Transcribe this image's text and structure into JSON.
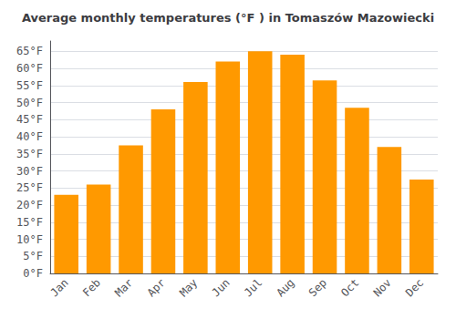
{
  "chart_data": {
    "type": "bar",
    "title": "Average monthly temperatures (°F ) in Tomaszów Mazowiecki",
    "categories": [
      "Jan",
      "Feb",
      "Mar",
      "Apr",
      "May",
      "Jun",
      "Jul",
      "Aug",
      "Sep",
      "Oct",
      "Nov",
      "Dec"
    ],
    "values": [
      23,
      26,
      37.5,
      48,
      56,
      62,
      65,
      64,
      56.5,
      48.5,
      37,
      27.5
    ],
    "color": "#FF9900",
    "ylim": [
      0,
      68
    ],
    "yticks": [
      {
        "value": 0,
        "label": "0°F"
      },
      {
        "value": 5,
        "label": "5°F"
      },
      {
        "value": 10,
        "label": "10°F"
      },
      {
        "value": 15,
        "label": "15°F"
      },
      {
        "value": 20,
        "label": "20°F"
      },
      {
        "value": 25,
        "label": "25°F"
      },
      {
        "value": 30,
        "label": "30°F"
      },
      {
        "value": 35,
        "label": "35°F"
      },
      {
        "value": 40,
        "label": "40°F"
      },
      {
        "value": 45,
        "label": "45°F"
      },
      {
        "value": 50,
        "label": "50°F"
      },
      {
        "value": 55,
        "label": "55°F"
      },
      {
        "value": 60,
        "label": "60°F"
      },
      {
        "value": 65,
        "label": "65°F"
      }
    ],
    "grid": true
  }
}
